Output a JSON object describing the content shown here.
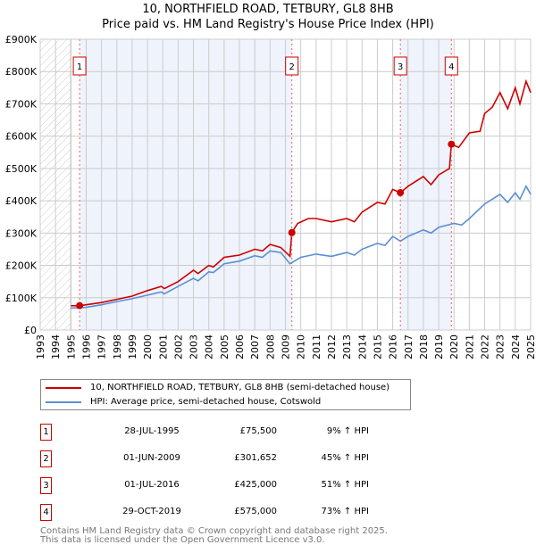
{
  "chart_data": {
    "type": "line",
    "title": "10, NORTHFIELD ROAD, TETBURY, GL8 8HB",
    "subtitle": "Price paid vs. HM Land Registry's House Price Index (HPI)",
    "xlim": [
      1993,
      2025
    ],
    "ylim": [
      0,
      900000
    ],
    "x_ticks": [
      "1993",
      "1994",
      "1995",
      "1996",
      "1997",
      "1998",
      "1999",
      "2000",
      "2001",
      "2002",
      "2003",
      "2004",
      "2005",
      "2006",
      "2007",
      "2008",
      "2009",
      "2010",
      "2011",
      "2012",
      "2013",
      "2014",
      "2015",
      "2016",
      "2017",
      "2018",
      "2019",
      "2020",
      "2021",
      "2022",
      "2023",
      "2024",
      "2025"
    ],
    "y_ticks": [
      {
        "v": 0,
        "label": "£0"
      },
      {
        "v": 100000,
        "label": "£100K"
      },
      {
        "v": 200000,
        "label": "£200K"
      },
      {
        "v": 300000,
        "label": "£300K"
      },
      {
        "v": 400000,
        "label": "£400K"
      },
      {
        "v": 500000,
        "label": "£500K"
      },
      {
        "v": 600000,
        "label": "£600K"
      },
      {
        "v": 700000,
        "label": "£700K"
      },
      {
        "v": 800000,
        "label": "£800K"
      },
      {
        "v": 900000,
        "label": "£900K"
      }
    ],
    "grid": true,
    "hatched_range": [
      1993,
      1995
    ],
    "shaded_ranges": [
      [
        1995.57,
        2009.42
      ],
      [
        2016.5,
        2019.83
      ]
    ],
    "colors": {
      "property": "#cc0000",
      "hpi": "#5b8fd4",
      "shade": "#eef3fc"
    },
    "series": [
      {
        "name": "10, NORTHFIELD ROAD, TETBURY, GL8 8HB (semi-detached house)",
        "color": "#cc0000",
        "x": [
          1995.0,
          1995.57,
          1996,
          1997,
          1998,
          1999,
          2000,
          2000.9,
          2001.1,
          2002,
          2003,
          2003.3,
          2004,
          2004.3,
          2005,
          2006,
          2007,
          2007.5,
          2008,
          2008.7,
          2009.3,
          2009.42,
          2009.8,
          2010.5,
          2011,
          2012,
          2013,
          2013.5,
          2014,
          2015,
          2015.5,
          2016,
          2016.5,
          2017,
          2018,
          2018.5,
          2019,
          2019.7,
          2019.83,
          2020.3,
          2021,
          2021.7,
          2022,
          2022.5,
          2023,
          2023.5,
          2024,
          2024.3,
          2024.7,
          2025
        ],
        "y": [
          75000,
          75500,
          78000,
          85000,
          95000,
          105000,
          122000,
          135000,
          128000,
          150000,
          185000,
          175000,
          200000,
          195000,
          225000,
          232000,
          250000,
          245000,
          265000,
          255000,
          228000,
          301652,
          330000,
          345000,
          345000,
          335000,
          345000,
          335000,
          365000,
          395000,
          390000,
          435000,
          425000,
          445000,
          475000,
          450000,
          480000,
          500000,
          575000,
          565000,
          610000,
          615000,
          670000,
          690000,
          735000,
          685000,
          750000,
          700000,
          770000,
          735000
        ]
      },
      {
        "name": "HPI: Average price, semi-detached house, Cotswold",
        "color": "#5b8fd4",
        "x": [
          1995.0,
          1996,
          1997,
          1998,
          1999,
          2000,
          2000.9,
          2001.1,
          2002,
          2003,
          2003.3,
          2004,
          2004.3,
          2005,
          2006,
          2007,
          2007.5,
          2008,
          2008.7,
          2009.3,
          2010,
          2011,
          2012,
          2013,
          2013.5,
          2014,
          2015,
          2015.5,
          2016,
          2016.5,
          2017,
          2018,
          2018.5,
          2019,
          2020,
          2020.5,
          2021,
          2022,
          2023,
          2023.5,
          2024,
          2024.3,
          2024.7,
          2025
        ],
        "y": [
          68000,
          70000,
          78000,
          88000,
          97000,
          108000,
          118000,
          112000,
          135000,
          160000,
          152000,
          180000,
          178000,
          205000,
          213000,
          230000,
          225000,
          245000,
          240000,
          205000,
          225000,
          235000,
          228000,
          240000,
          232000,
          250000,
          268000,
          262000,
          290000,
          275000,
          290000,
          310000,
          300000,
          318000,
          330000,
          325000,
          345000,
          390000,
          420000,
          395000,
          425000,
          405000,
          445000,
          420000
        ]
      }
    ],
    "markers": [
      {
        "label": "1",
        "x": 1995.57,
        "y": 75500
      },
      {
        "label": "2",
        "x": 2009.42,
        "y": 301652
      },
      {
        "label": "3",
        "x": 2016.5,
        "y": 425000
      },
      {
        "label": "4",
        "x": 2019.83,
        "y": 575000
      }
    ]
  },
  "header": {
    "title": "10, NORTHFIELD ROAD, TETBURY, GL8 8HB",
    "subtitle": "Price paid vs. HM Land Registry's House Price Index (HPI)"
  },
  "legend": {
    "property": "10, NORTHFIELD ROAD, TETBURY, GL8 8HB (semi-detached house)",
    "hpi": "HPI: Average price, semi-detached house, Cotswold"
  },
  "transactions": [
    {
      "num": "1",
      "date": "28-JUL-1995",
      "price": "£75,500",
      "pct": "9% ↑ HPI"
    },
    {
      "num": "2",
      "date": "01-JUN-2009",
      "price": "£301,652",
      "pct": "45% ↑ HPI"
    },
    {
      "num": "3",
      "date": "01-JUL-2016",
      "price": "£425,000",
      "pct": "51% ↑ HPI"
    },
    {
      "num": "4",
      "date": "29-OCT-2019",
      "price": "£575,000",
      "pct": "73% ↑ HPI"
    }
  ],
  "footer": {
    "line1": "Contains HM Land Registry data © Crown copyright and database right 2025.",
    "line2": "This data is licensed under the Open Government Licence v3.0."
  }
}
